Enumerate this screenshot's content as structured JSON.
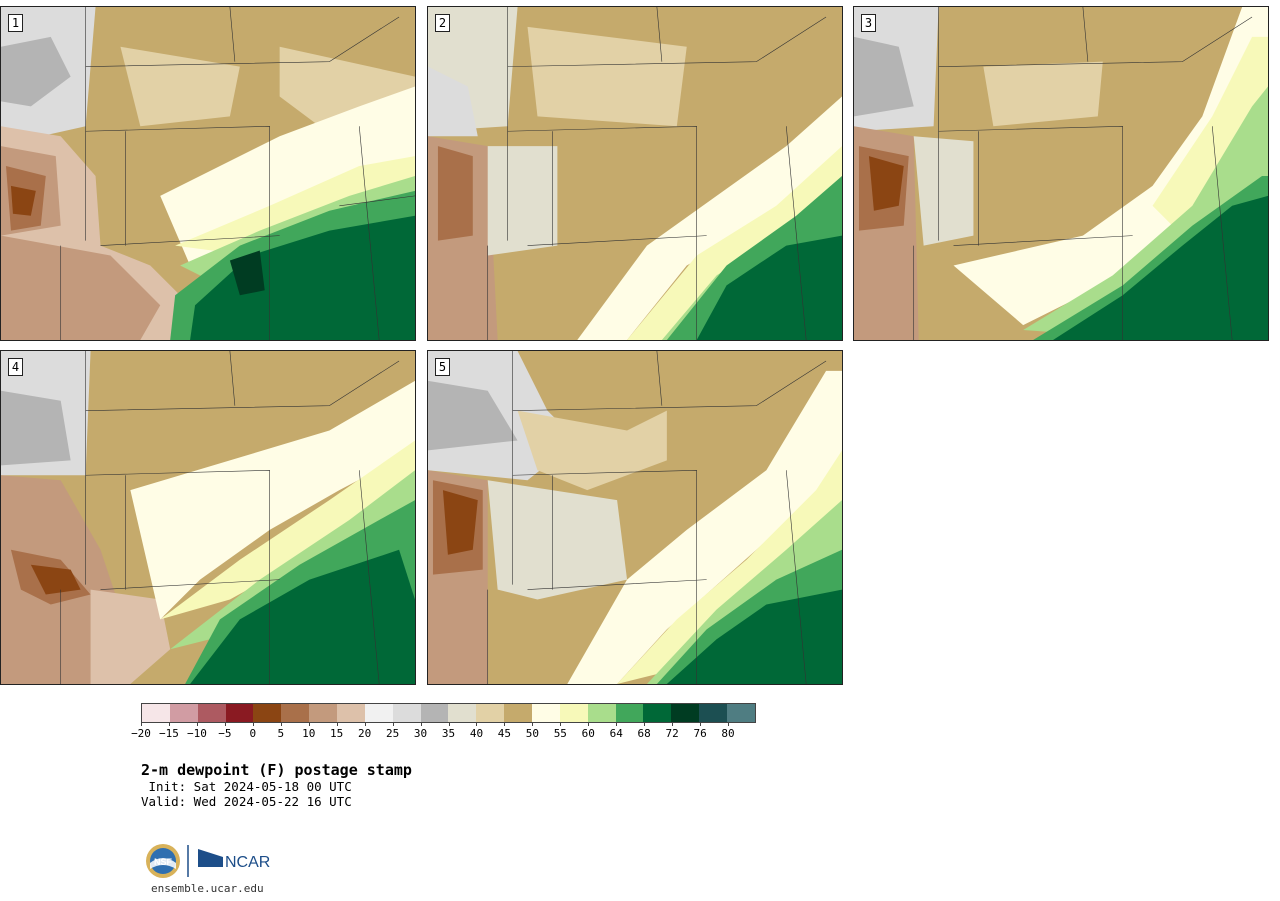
{
  "panels": [
    {
      "label": "1"
    },
    {
      "label": "2"
    },
    {
      "label": "3"
    },
    {
      "label": "4"
    },
    {
      "label": "5"
    }
  ],
  "legend": {
    "colors": [
      "#f6e6e8",
      "#d19ca3",
      "#ad5a61",
      "#8a1a22",
      "#8b4513",
      "#a9704a",
      "#c39a7d",
      "#ddc1aa",
      "#f1f1f1",
      "#dcdcdc",
      "#b4b4b4",
      "#e1dfcf",
      "#e2d1a6",
      "#c5aa6c",
      "#fffde6",
      "#f7f9b9",
      "#a9dd8c",
      "#41a75b",
      "#006837",
      "#003c22",
      "#1c4f52",
      "#4f7d82"
    ],
    "ticks": [
      "−20",
      "−15",
      "−10",
      "−5",
      "0",
      "5",
      "10",
      "15",
      "20",
      "25",
      "30",
      "35",
      "40",
      "45",
      "50",
      "55",
      "60",
      "64",
      "68",
      "72",
      "76",
      "80"
    ]
  },
  "title": "2-m dewpoint (F) postage stamp",
  "init": " Init: Sat 2024-05-18 00 UTC",
  "valid": "Valid: Wed 2024-05-22 16 UTC",
  "logo": {
    "nsf": "NSF",
    "ncar": "NCAR"
  },
  "website": "ensemble.ucar.edu"
}
